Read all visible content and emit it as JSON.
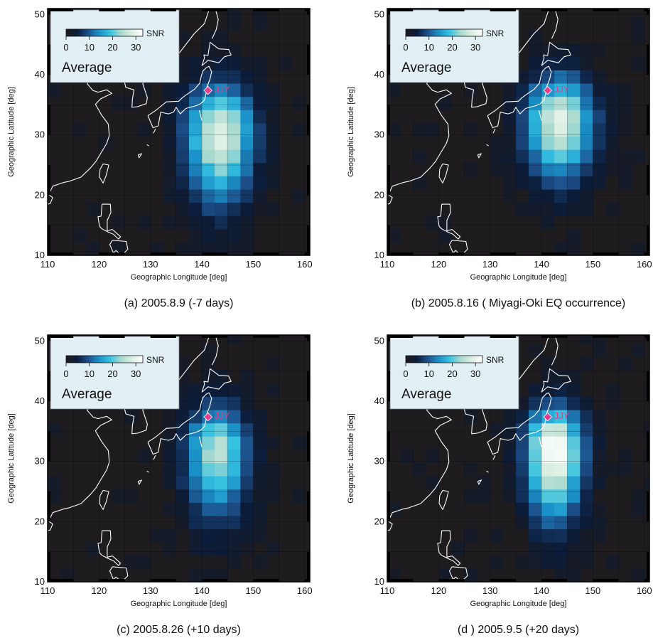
{
  "shared": {
    "xlabel": "Geographic Longitude [deg]",
    "ylabel": "Geographic Latitude [deg]",
    "xticks": [
      110,
      120,
      130,
      140,
      150,
      160
    ],
    "yticks": [
      10,
      20,
      30,
      40,
      50
    ],
    "xlim": [
      110,
      161
    ],
    "ylim": [
      10,
      51
    ],
    "legend_label": "SNR",
    "legend_ticks": [
      0,
      10,
      20,
      30
    ],
    "legend_title": "Average",
    "station_label": "JJY",
    "station": {
      "lon": 141.2,
      "lat": 37.4
    },
    "colorscale": [
      "#1d1b1e",
      "#0b1c3a",
      "#1d4f8a",
      "#1a90c8",
      "#36c3e2",
      "#a9d9cf",
      "#dcefe2",
      "#ffffff"
    ],
    "colors": {
      "background": "#1e1c1e",
      "land": "#ffffff",
      "legend_box": "#e2f0f6",
      "station": "#e63c8c"
    }
  },
  "chart_data": [
    {
      "type": "heatmap",
      "caption": "(a) 2005.8.9 (-7 days)",
      "peak": {
        "lon": 143.5,
        "lat": 30.5,
        "snr": 28
      },
      "extent": {
        "lon_sigma": 4.5,
        "lat_sigma": 5.5,
        "south_tail": 0.45
      }
    },
    {
      "type": "heatmap",
      "caption": "(b) 2005.8.16 ( Miyagi-Oki EQ occurrence)",
      "peak": {
        "lon": 143.5,
        "lat": 32.5,
        "snr": 28
      },
      "extent": {
        "lon_sigma": 4.5,
        "lat_sigma": 5.0,
        "south_tail": 0.35
      }
    },
    {
      "type": "heatmap",
      "caption": "(c) 2005.8.26 (+10 days)",
      "peak": {
        "lon": 143.0,
        "lat": 32.0,
        "snr": 24
      },
      "extent": {
        "lon_sigma": 4.2,
        "lat_sigma": 5.0,
        "south_tail": 0.55
      }
    },
    {
      "type": "heatmap",
      "caption": "(d ) 2005.9.5 (+20 days)",
      "peak": {
        "lon": 142.5,
        "lat": 32.5,
        "snr": 33
      },
      "extent": {
        "lon_sigma": 3.8,
        "lat_sigma": 4.5,
        "south_tail": 0.8
      }
    }
  ]
}
